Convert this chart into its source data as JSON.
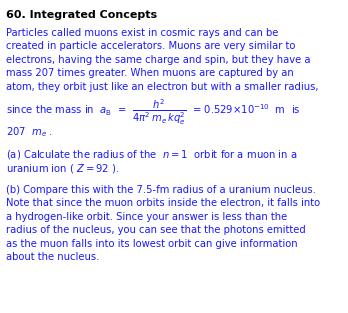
{
  "title": "60. Integrated Concepts",
  "bg_color": "#ffffff",
  "text_color": "#1a1aff",
  "title_color": "#000000",
  "body_lines": [
    "Particles called muons exist in cosmic rays and can be",
    "created in particle accelerators. Muons are very similar to",
    "electrons, having the same charge and spin, but they have a",
    "mass 207 times greater. When muons are captured by an",
    "atom, they orbit just like an electron but with a smaller radius,"
  ],
  "line_207": "207  $m_e$ .",
  "part_a": "(a) Calculate the radius of the  $n = 1$  orbit for a muon in a",
  "part_a2": "uranium ion ( $Z = 92$ ).",
  "part_b_lines": [
    "(b) Compare this with the 7.5-fm radius of a uranium nucleus.",
    "Note that since the muon orbits inside the electron, it falls into",
    "a hydrogen-like orbit. Since your answer is less than the",
    "radius of the nucleus, you can see that the photons emitted",
    "as the muon falls into its lowest orbit can give information",
    "about the nucleus."
  ],
  "font_size_title": 8.0,
  "font_size_body": 7.2,
  "figsize": [
    3.48,
    3.13
  ],
  "dpi": 100
}
